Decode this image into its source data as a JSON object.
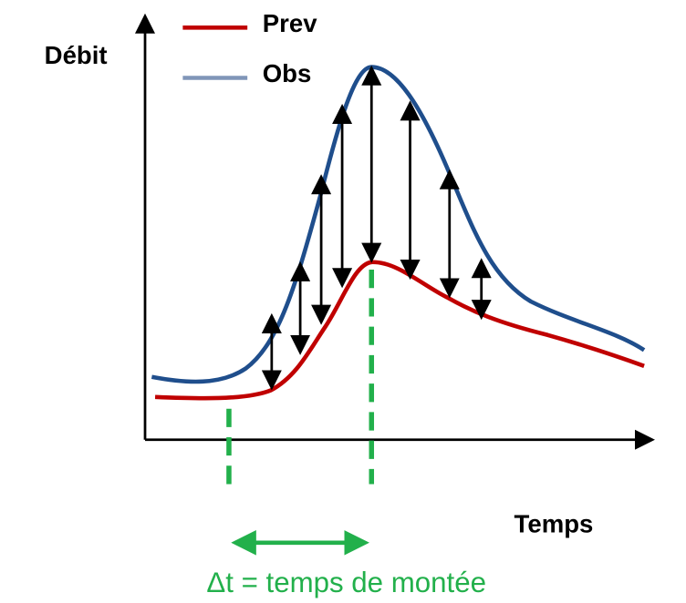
{
  "axes": {
    "y_label": "Débit",
    "x_label": "Temps"
  },
  "legend": {
    "items": [
      "Prev",
      "Obs"
    ]
  },
  "annotation": "Δt = temps de montée"
}
